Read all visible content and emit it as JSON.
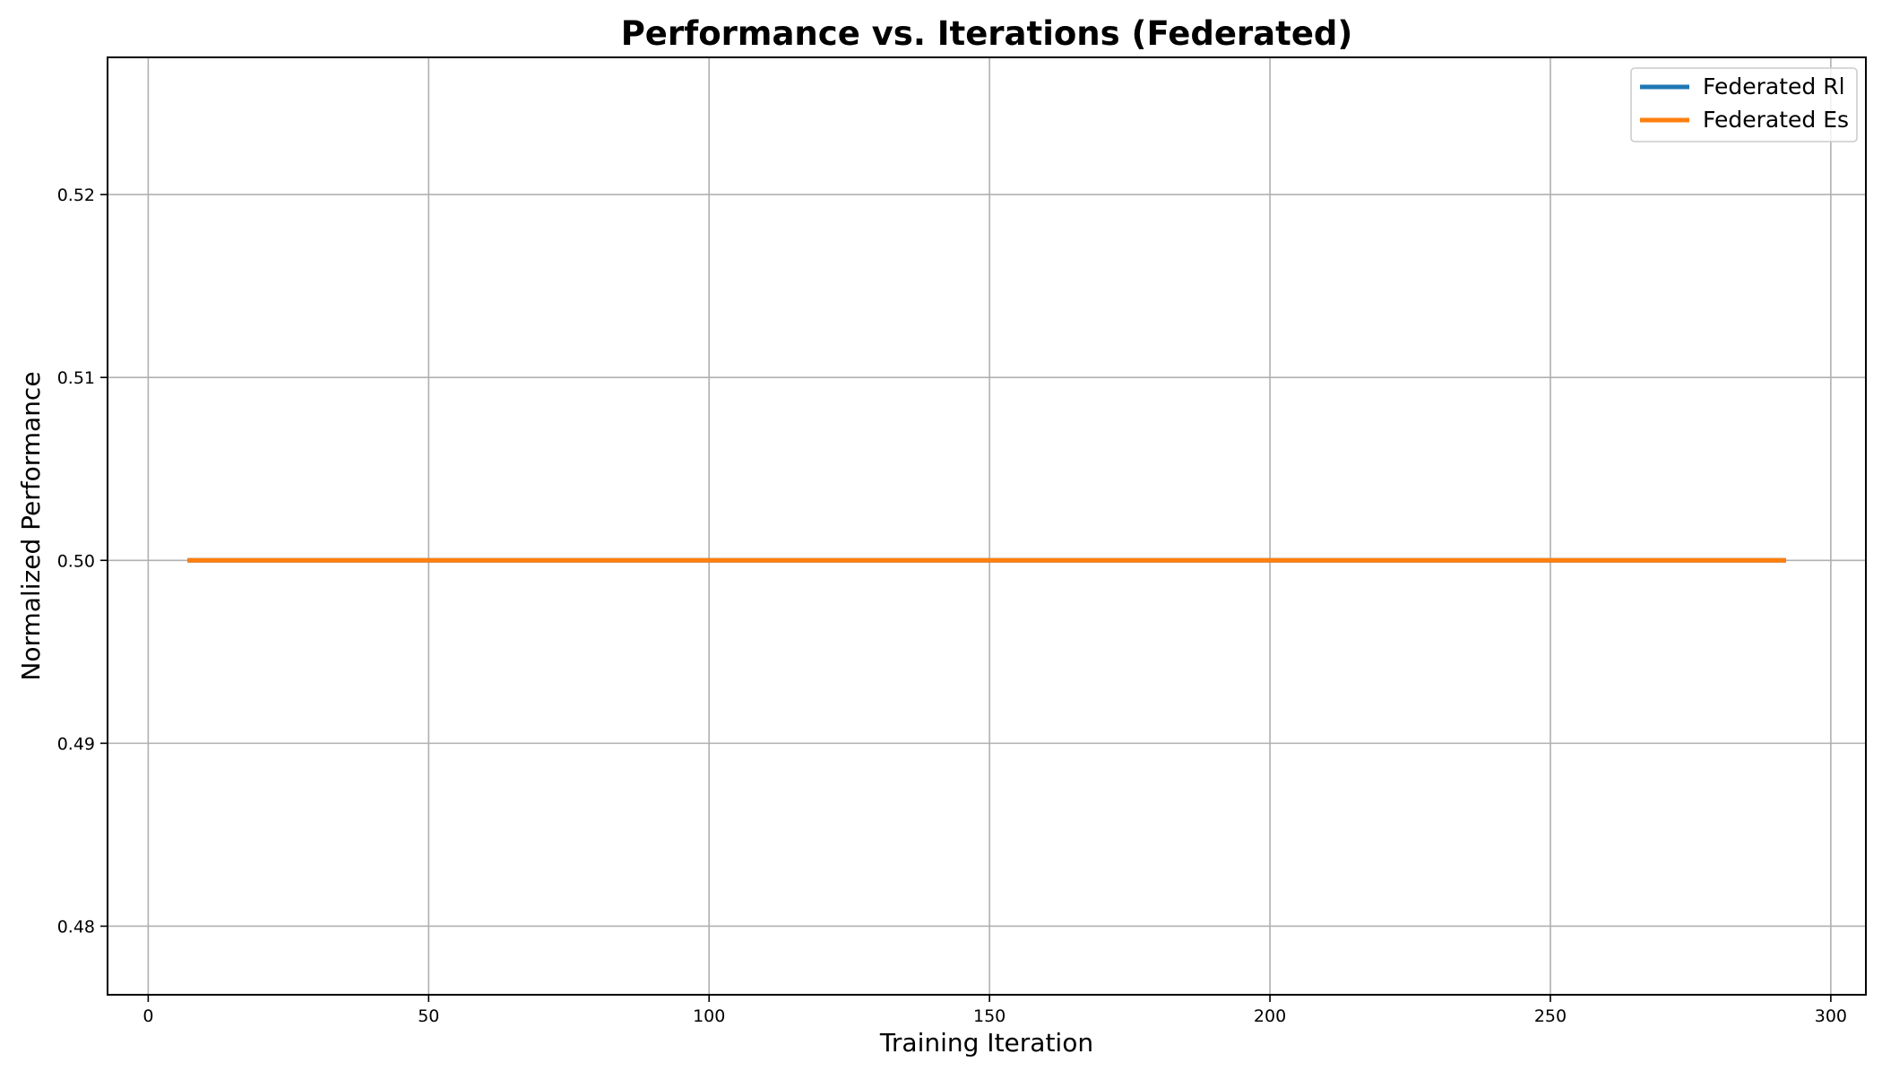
{
  "chart_data": {
    "type": "line",
    "title": "Performance vs. Iterations (Federated)",
    "xlabel": "Training Iteration",
    "ylabel": "Normalized Performance",
    "xlim": [
      -7.25,
      306.25
    ],
    "ylim": [
      0.47625,
      0.5275
    ],
    "xticks": [
      0,
      50,
      100,
      150,
      200,
      250,
      300
    ],
    "xtick_labels": [
      "0",
      "50",
      "100",
      "150",
      "200",
      "250",
      "300"
    ],
    "yticks": [
      0.48,
      0.49,
      0.5,
      0.51,
      0.52
    ],
    "ytick_labels": [
      "0.48",
      "0.49",
      "0.50",
      "0.51",
      "0.52"
    ],
    "grid": true,
    "legend_position": "top-right",
    "series": [
      {
        "name": "Federated Rl",
        "color": "#1f77b4",
        "x": [
          7,
          292
        ],
        "y": [
          0.5,
          0.5
        ]
      },
      {
        "name": "Federated Es",
        "color": "#ff7f0e",
        "x": [
          7,
          292
        ],
        "y": [
          0.5,
          0.5
        ]
      }
    ]
  }
}
